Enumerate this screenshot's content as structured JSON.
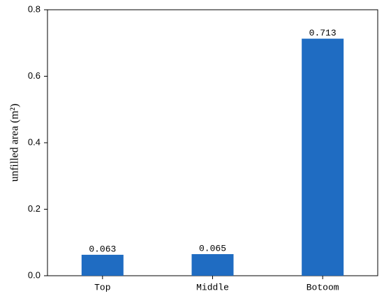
{
  "chart_data": {
    "type": "bar",
    "y_label": "unfilled area (m²)",
    "categories": [
      "Top",
      "Middle",
      "Botoom"
    ],
    "values": [
      0.063,
      0.065,
      0.713
    ],
    "color": "#1f6cc2",
    "ylim": [
      0,
      0.8
    ],
    "yticks": [
      {
        "value": 0,
        "label": "0.0"
      },
      0.2,
      0.4,
      0.6,
      0.8
    ],
    "grid": false
  }
}
